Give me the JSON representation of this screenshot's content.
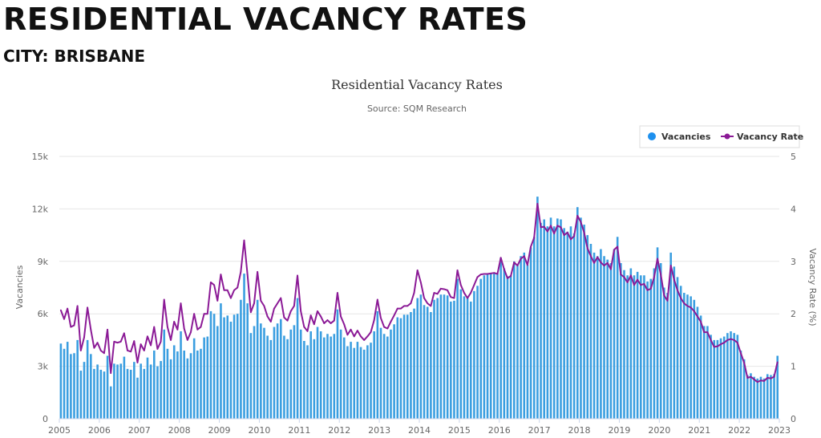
{
  "page": {
    "heading": "RESIDENTIAL VACANCY RATES",
    "subheading": "CITY: BRISBANE"
  },
  "chart_data": {
    "type": "bar+line",
    "title": "Residential Vacancy Rates",
    "subtitle": "Source: SQM Research",
    "ylabel": "Vacancies",
    "y2label": "Vacancy Rate (%)",
    "ylim": [
      0,
      15000
    ],
    "y2lim": [
      0,
      5
    ],
    "yticks": [
      "0",
      "3k",
      "6k",
      "9k",
      "12k",
      "15k"
    ],
    "y2ticks": [
      "0",
      "1",
      "2",
      "3",
      "4",
      "5"
    ],
    "xticks": [
      "2005",
      "2006",
      "2007",
      "2008",
      "2009",
      "2010",
      "2011",
      "2012",
      "2013",
      "2014",
      "2015",
      "2016",
      "2017",
      "2018",
      "2019",
      "2020",
      "2021",
      "2022",
      "2023"
    ],
    "x_start": "2005-01",
    "x_end": "2022-12",
    "frequency": "monthly",
    "grid": true,
    "legend": "top-right",
    "colors": {
      "vacancies": "#3a9ee0",
      "rate": "#8b1a96"
    },
    "series": [
      {
        "name": "Vacancies",
        "type": "bar",
        "values": [
          4300,
          4000,
          4400,
          3700,
          3750,
          4500,
          2750,
          3250,
          4500,
          3700,
          2850,
          3100,
          2800,
          2700,
          3600,
          1850,
          3150,
          3100,
          3150,
          3550,
          2850,
          2800,
          3250,
          2350,
          3150,
          2850,
          3500,
          3100,
          3900,
          3000,
          3300,
          5100,
          4000,
          3400,
          4200,
          3850,
          5000,
          3900,
          3450,
          3750,
          4600,
          3900,
          4000,
          4650,
          4700,
          6150,
          6000,
          5300,
          6600,
          5800,
          5900,
          5550,
          5950,
          6000,
          6800,
          8300,
          6600,
          4900,
          5300,
          6800,
          5450,
          5200,
          4750,
          4500,
          5250,
          5450,
          5700,
          4750,
          4550,
          5100,
          5350,
          6900,
          5100,
          4450,
          4200,
          5000,
          4550,
          5250,
          5000,
          4650,
          4850,
          4700,
          4850,
          6250,
          5100,
          4650,
          4150,
          4400,
          4050,
          4400,
          4100,
          3950,
          4200,
          4350,
          5000,
          6150,
          5200,
          4850,
          4700,
          5100,
          5400,
          5800,
          5750,
          5950,
          5950,
          6100,
          6300,
          6900,
          7100,
          6500,
          6400,
          6100,
          6800,
          6900,
          7100,
          7100,
          7050,
          6700,
          6750,
          8000,
          7400,
          7000,
          6900,
          6700,
          7300,
          7600,
          8000,
          8200,
          8300,
          8300,
          8350,
          8300,
          9200,
          8600,
          8150,
          8200,
          9000,
          8800,
          9300,
          9500,
          8800,
          9800,
          10400,
          12700,
          11200,
          11400,
          11000,
          11500,
          11000,
          11450,
          11400,
          10900,
          10700,
          11000,
          10600,
          12100,
          11500,
          11100,
          10500,
          10000,
          9500,
          9300,
          9700,
          9300,
          9100,
          8900,
          9700,
          10400,
          8900,
          8500,
          8200,
          8600,
          8200,
          8400,
          8200,
          8200,
          7850,
          8000,
          8600,
          9800,
          8900,
          7500,
          7200,
          9500,
          8700,
          8100,
          7600,
          7200,
          7100,
          7000,
          6800,
          6400,
          5900,
          5300,
          5300,
          4800,
          4500,
          4500,
          4600,
          4700,
          4900,
          5000,
          4900,
          4800,
          3900,
          3400,
          2500,
          2600,
          2400,
          2300,
          2400,
          2300,
          2550,
          2500,
          2550,
          3600
        ]
      },
      {
        "name": "Vacancy Rate",
        "type": "line",
        "axis": "right",
        "values": [
          2.07,
          1.9,
          2.1,
          1.75,
          1.78,
          2.15,
          1.3,
          1.55,
          2.12,
          1.7,
          1.35,
          1.45,
          1.3,
          1.25,
          1.7,
          0.87,
          1.47,
          1.45,
          1.47,
          1.63,
          1.3,
          1.28,
          1.48,
          1.07,
          1.42,
          1.3,
          1.57,
          1.4,
          1.75,
          1.33,
          1.47,
          2.27,
          1.75,
          1.5,
          1.85,
          1.7,
          2.2,
          1.72,
          1.5,
          1.65,
          2.0,
          1.7,
          1.75,
          2.0,
          2.0,
          2.6,
          2.55,
          2.25,
          2.75,
          2.45,
          2.45,
          2.3,
          2.45,
          2.5,
          2.8,
          3.4,
          2.75,
          2.03,
          2.2,
          2.8,
          2.25,
          2.15,
          1.95,
          1.85,
          2.1,
          2.2,
          2.3,
          1.93,
          1.87,
          2.05,
          2.15,
          2.73,
          2.05,
          1.75,
          1.67,
          1.97,
          1.8,
          2.05,
          1.95,
          1.82,
          1.88,
          1.82,
          1.87,
          2.4,
          1.95,
          1.8,
          1.6,
          1.7,
          1.57,
          1.68,
          1.57,
          1.5,
          1.57,
          1.65,
          1.88,
          2.27,
          1.92,
          1.75,
          1.72,
          1.85,
          1.97,
          2.1,
          2.1,
          2.15,
          2.15,
          2.2,
          2.4,
          2.83,
          2.6,
          2.3,
          2.2,
          2.15,
          2.4,
          2.38,
          2.48,
          2.47,
          2.45,
          2.32,
          2.3,
          2.83,
          2.55,
          2.4,
          2.3,
          2.4,
          2.55,
          2.7,
          2.75,
          2.76,
          2.76,
          2.77,
          2.78,
          2.76,
          3.07,
          2.85,
          2.68,
          2.72,
          2.98,
          2.92,
          3.05,
          3.1,
          2.93,
          3.28,
          3.45,
          4.1,
          3.65,
          3.66,
          3.57,
          3.68,
          3.53,
          3.68,
          3.65,
          3.5,
          3.55,
          3.42,
          3.48,
          3.87,
          3.75,
          3.55,
          3.25,
          3.1,
          2.97,
          3.08,
          2.98,
          2.92,
          2.97,
          2.85,
          3.22,
          3.28,
          2.75,
          2.7,
          2.6,
          2.73,
          2.55,
          2.65,
          2.55,
          2.57,
          2.45,
          2.48,
          2.7,
          3.05,
          2.75,
          2.35,
          2.25,
          2.92,
          2.65,
          2.45,
          2.3,
          2.2,
          2.15,
          2.12,
          2.05,
          1.95,
          1.85,
          1.65,
          1.65,
          1.5,
          1.37,
          1.38,
          1.42,
          1.45,
          1.5,
          1.52,
          1.5,
          1.45,
          1.25,
          1.07,
          0.78,
          0.8,
          0.75,
          0.7,
          0.73,
          0.72,
          0.78,
          0.77,
          0.8,
          1.08
        ]
      }
    ]
  }
}
